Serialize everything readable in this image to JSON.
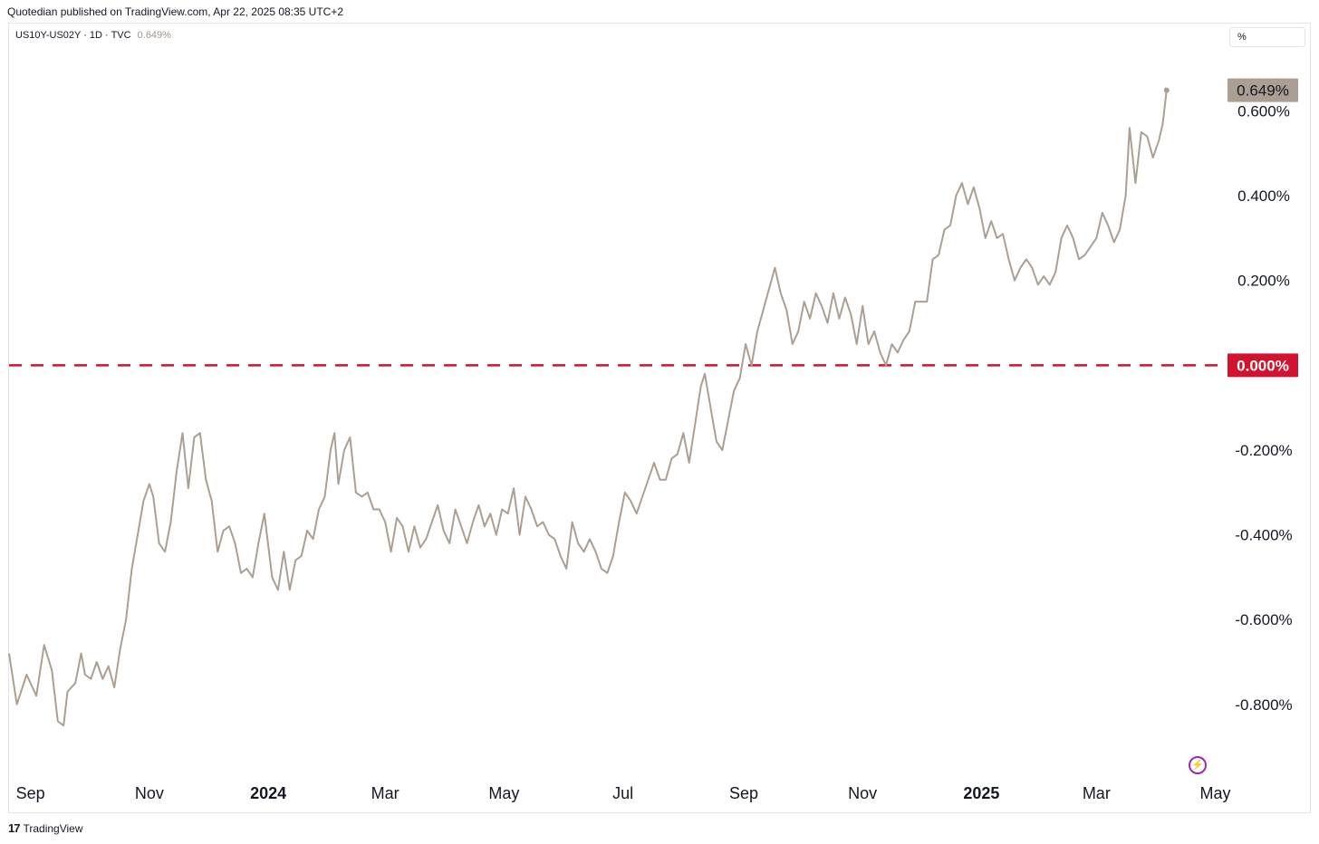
{
  "header": {
    "published": "Quotedian published on TradingView.com, Apr 22, 2025 08:35 UTC+2"
  },
  "legend": {
    "symbol": "US10Y-US02Y · 1D · TVC",
    "value": "0.649%"
  },
  "unit": "%",
  "footer": {
    "brand": "TradingView"
  },
  "icons": {
    "logo": "tradingview-logo-icon",
    "flash": "lightning-icon"
  },
  "colors": {
    "line": "#ab9f93",
    "zero_line": "#d1132f",
    "last_price_bg": "#ab9f93",
    "zero_label_bg": "#d1132f"
  },
  "chart_data": {
    "type": "line",
    "series": [
      {
        "values": [
          [
            "2023-08-21",
            -0.68
          ],
          [
            "2023-08-25",
            -0.8
          ],
          [
            "2023-08-30",
            -0.73
          ],
          [
            "2023-09-04",
            -0.78
          ],
          [
            "2023-09-08",
            -0.66
          ],
          [
            "2023-09-12",
            -0.72
          ],
          [
            "2023-09-15",
            -0.84
          ],
          [
            "2023-09-18",
            -0.85
          ],
          [
            "2023-09-20",
            -0.77
          ],
          [
            "2023-09-24",
            -0.75
          ],
          [
            "2023-09-27",
            -0.68
          ],
          [
            "2023-09-29",
            -0.73
          ],
          [
            "2023-10-02",
            -0.74
          ],
          [
            "2023-10-05",
            -0.7
          ],
          [
            "2023-10-08",
            -0.74
          ],
          [
            "2023-10-11",
            -0.71
          ],
          [
            "2023-10-14",
            -0.76
          ],
          [
            "2023-10-17",
            -0.67
          ],
          [
            "2023-10-20",
            -0.6
          ],
          [
            "2023-10-23",
            -0.48
          ],
          [
            "2023-10-26",
            -0.4
          ],
          [
            "2023-10-29",
            -0.32
          ],
          [
            "2023-11-01",
            -0.28
          ],
          [
            "2023-11-03",
            -0.31
          ],
          [
            "2023-11-06",
            -0.42
          ],
          [
            "2023-11-09",
            -0.44
          ],
          [
            "2023-11-12",
            -0.37
          ],
          [
            "2023-11-15",
            -0.25
          ],
          [
            "2023-11-18",
            -0.16
          ],
          [
            "2023-11-21",
            -0.29
          ],
          [
            "2023-11-24",
            -0.17
          ],
          [
            "2023-11-27",
            -0.16
          ],
          [
            "2023-11-30",
            -0.27
          ],
          [
            "2023-12-03",
            -0.32
          ],
          [
            "2023-12-06",
            -0.44
          ],
          [
            "2023-12-09",
            -0.39
          ],
          [
            "2023-12-12",
            -0.38
          ],
          [
            "2023-12-15",
            -0.42
          ],
          [
            "2023-12-18",
            -0.49
          ],
          [
            "2023-12-21",
            -0.48
          ],
          [
            "2023-12-24",
            -0.5
          ],
          [
            "2023-12-27",
            -0.42
          ],
          [
            "2023-12-30",
            -0.35
          ],
          [
            "2024-01-03",
            -0.5
          ],
          [
            "2024-01-06",
            -0.53
          ],
          [
            "2024-01-09",
            -0.44
          ],
          [
            "2024-01-12",
            -0.53
          ],
          [
            "2024-01-15",
            -0.46
          ],
          [
            "2024-01-18",
            -0.45
          ],
          [
            "2024-01-21",
            -0.39
          ],
          [
            "2024-01-24",
            -0.41
          ],
          [
            "2024-01-27",
            -0.34
          ],
          [
            "2024-01-30",
            -0.31
          ],
          [
            "2024-02-02",
            -0.2
          ],
          [
            "2024-02-04",
            -0.16
          ],
          [
            "2024-02-06",
            -0.28
          ],
          [
            "2024-02-09",
            -0.2
          ],
          [
            "2024-02-12",
            -0.17
          ],
          [
            "2024-02-15",
            -0.3
          ],
          [
            "2024-02-18",
            -0.31
          ],
          [
            "2024-02-21",
            -0.3
          ],
          [
            "2024-02-24",
            -0.34
          ],
          [
            "2024-02-27",
            -0.34
          ],
          [
            "2024-03-01",
            -0.37
          ],
          [
            "2024-03-04",
            -0.44
          ],
          [
            "2024-03-07",
            -0.36
          ],
          [
            "2024-03-10",
            -0.38
          ],
          [
            "2024-03-13",
            -0.44
          ],
          [
            "2024-03-16",
            -0.38
          ],
          [
            "2024-03-19",
            -0.43
          ],
          [
            "2024-03-22",
            -0.41
          ],
          [
            "2024-03-25",
            -0.37
          ],
          [
            "2024-03-28",
            -0.33
          ],
          [
            "2024-03-31",
            -0.39
          ],
          [
            "2024-04-03",
            -0.42
          ],
          [
            "2024-04-06",
            -0.34
          ],
          [
            "2024-04-09",
            -0.38
          ],
          [
            "2024-04-12",
            -0.42
          ],
          [
            "2024-04-15",
            -0.37
          ],
          [
            "2024-04-18",
            -0.33
          ],
          [
            "2024-04-21",
            -0.38
          ],
          [
            "2024-04-24",
            -0.35
          ],
          [
            "2024-04-27",
            -0.4
          ],
          [
            "2024-04-30",
            -0.34
          ],
          [
            "2024-05-03",
            -0.35
          ],
          [
            "2024-05-06",
            -0.29
          ],
          [
            "2024-05-09",
            -0.4
          ],
          [
            "2024-05-12",
            -0.31
          ],
          [
            "2024-05-15",
            -0.34
          ],
          [
            "2024-05-18",
            -0.38
          ],
          [
            "2024-05-21",
            -0.37
          ],
          [
            "2024-05-24",
            -0.4
          ],
          [
            "2024-05-27",
            -0.41
          ],
          [
            "2024-05-30",
            -0.45
          ],
          [
            "2024-06-02",
            -0.48
          ],
          [
            "2024-06-05",
            -0.37
          ],
          [
            "2024-06-08",
            -0.42
          ],
          [
            "2024-06-11",
            -0.44
          ],
          [
            "2024-06-14",
            -0.41
          ],
          [
            "2024-06-17",
            -0.44
          ],
          [
            "2024-06-20",
            -0.48
          ],
          [
            "2024-06-23",
            -0.49
          ],
          [
            "2024-06-26",
            -0.45
          ],
          [
            "2024-06-29",
            -0.37
          ],
          [
            "2024-07-02",
            -0.3
          ],
          [
            "2024-07-05",
            -0.32
          ],
          [
            "2024-07-08",
            -0.35
          ],
          [
            "2024-07-11",
            -0.31
          ],
          [
            "2024-07-14",
            -0.27
          ],
          [
            "2024-07-17",
            -0.23
          ],
          [
            "2024-07-20",
            -0.27
          ],
          [
            "2024-07-23",
            -0.27
          ],
          [
            "2024-07-26",
            -0.22
          ],
          [
            "2024-07-29",
            -0.21
          ],
          [
            "2024-08-01",
            -0.16
          ],
          [
            "2024-08-04",
            -0.23
          ],
          [
            "2024-08-07",
            -0.14
          ],
          [
            "2024-08-10",
            -0.05
          ],
          [
            "2024-08-12",
            -0.02
          ],
          [
            "2024-08-15",
            -0.1
          ],
          [
            "2024-08-18",
            -0.18
          ],
          [
            "2024-08-21",
            -0.2
          ],
          [
            "2024-08-24",
            -0.13
          ],
          [
            "2024-08-27",
            -0.06
          ],
          [
            "2024-08-30",
            -0.03
          ],
          [
            "2024-09-02",
            0.05
          ],
          [
            "2024-09-05",
            0.0
          ],
          [
            "2024-09-08",
            0.08
          ],
          [
            "2024-09-11",
            0.13
          ],
          [
            "2024-09-14",
            0.18
          ],
          [
            "2024-09-17",
            0.23
          ],
          [
            "2024-09-20",
            0.17
          ],
          [
            "2024-09-23",
            0.13
          ],
          [
            "2024-09-26",
            0.05
          ],
          [
            "2024-09-29",
            0.08
          ],
          [
            "2024-10-02",
            0.15
          ],
          [
            "2024-10-05",
            0.11
          ],
          [
            "2024-10-08",
            0.17
          ],
          [
            "2024-10-11",
            0.14
          ],
          [
            "2024-10-14",
            0.1
          ],
          [
            "2024-10-17",
            0.17
          ],
          [
            "2024-10-20",
            0.11
          ],
          [
            "2024-10-23",
            0.16
          ],
          [
            "2024-10-26",
            0.12
          ],
          [
            "2024-10-29",
            0.05
          ],
          [
            "2024-11-01",
            0.14
          ],
          [
            "2024-11-04",
            0.05
          ],
          [
            "2024-11-07",
            0.08
          ],
          [
            "2024-11-10",
            0.03
          ],
          [
            "2024-11-13",
            0.0
          ],
          [
            "2024-11-16",
            0.05
          ],
          [
            "2024-11-19",
            0.03
          ],
          [
            "2024-11-22",
            0.06
          ],
          [
            "2024-11-25",
            0.08
          ],
          [
            "2024-11-28",
            0.15
          ],
          [
            "2024-12-01",
            0.15
          ],
          [
            "2024-12-04",
            0.15
          ],
          [
            "2024-12-07",
            0.25
          ],
          [
            "2024-12-10",
            0.26
          ],
          [
            "2024-12-13",
            0.32
          ],
          [
            "2024-12-16",
            0.33
          ],
          [
            "2024-12-19",
            0.4
          ],
          [
            "2024-12-22",
            0.43
          ],
          [
            "2024-12-25",
            0.38
          ],
          [
            "2024-12-28",
            0.42
          ],
          [
            "2024-12-31",
            0.37
          ],
          [
            "2025-01-03",
            0.3
          ],
          [
            "2025-01-06",
            0.34
          ],
          [
            "2025-01-09",
            0.3
          ],
          [
            "2025-01-12",
            0.31
          ],
          [
            "2025-01-15",
            0.25
          ],
          [
            "2025-01-18",
            0.2
          ],
          [
            "2025-01-21",
            0.23
          ],
          [
            "2025-01-24",
            0.25
          ],
          [
            "2025-01-27",
            0.23
          ],
          [
            "2025-01-30",
            0.19
          ],
          [
            "2025-02-02",
            0.21
          ],
          [
            "2025-02-05",
            0.19
          ],
          [
            "2025-02-08",
            0.22
          ],
          [
            "2025-02-11",
            0.3
          ],
          [
            "2025-02-14",
            0.33
          ],
          [
            "2025-02-17",
            0.3
          ],
          [
            "2025-02-20",
            0.25
          ],
          [
            "2025-02-23",
            0.26
          ],
          [
            "2025-02-26",
            0.28
          ],
          [
            "2025-03-01",
            0.3
          ],
          [
            "2025-03-04",
            0.36
          ],
          [
            "2025-03-07",
            0.33
          ],
          [
            "2025-03-10",
            0.29
          ],
          [
            "2025-03-13",
            0.32
          ],
          [
            "2025-03-16",
            0.4
          ],
          [
            "2025-03-18",
            0.56
          ],
          [
            "2025-03-21",
            0.43
          ],
          [
            "2025-03-24",
            0.55
          ],
          [
            "2025-03-27",
            0.54
          ],
          [
            "2025-03-30",
            0.49
          ],
          [
            "2025-04-02",
            0.53
          ],
          [
            "2025-04-04",
            0.57
          ],
          [
            "2025-04-06",
            0.649
          ]
        ]
      }
    ],
    "yticks": [
      "0.600%",
      "0.400%",
      "0.200%",
      "-0.200%",
      "-0.400%",
      "-0.600%",
      "-0.800%"
    ],
    "ytick_values": [
      0.6,
      0.4,
      0.2,
      -0.2,
      -0.4,
      -0.6,
      -0.8
    ],
    "xticks": [
      {
        "date": "2023-09-01",
        "label": "Sep",
        "bold": false
      },
      {
        "date": "2023-11-01",
        "label": "Nov",
        "bold": false
      },
      {
        "date": "2024-01-01",
        "label": "2024",
        "bold": true
      },
      {
        "date": "2024-03-01",
        "label": "Mar",
        "bold": false
      },
      {
        "date": "2024-05-01",
        "label": "May",
        "bold": false
      },
      {
        "date": "2024-07-01",
        "label": "Jul",
        "bold": false
      },
      {
        "date": "2024-09-01",
        "label": "Sep",
        "bold": false
      },
      {
        "date": "2024-11-01",
        "label": "Nov",
        "bold": false
      },
      {
        "date": "2025-01-01",
        "label": "2025",
        "bold": true
      },
      {
        "date": "2025-03-01",
        "label": "Mar",
        "bold": false
      },
      {
        "date": "2025-05-01",
        "label": "May",
        "bold": false
      }
    ],
    "xlim": [
      "2023-08-21",
      "2025-05-04"
    ],
    "ylim": [
      -0.95,
      0.74
    ],
    "zero_line": {
      "value": 0,
      "label": "0.000%"
    },
    "last_price": {
      "value": 0.649,
      "label": "0.649%"
    },
    "grid": false
  }
}
